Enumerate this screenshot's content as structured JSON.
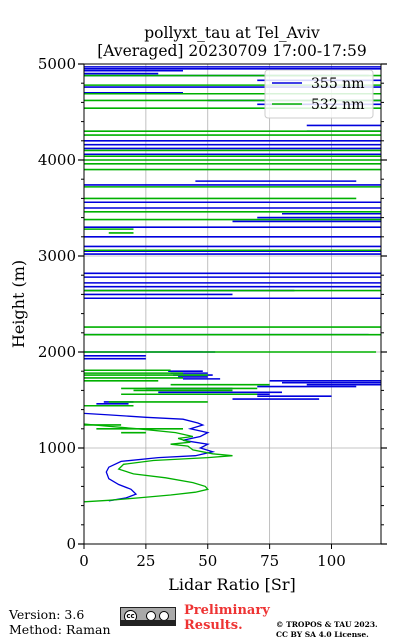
{
  "title_line1": "pollyxt_tau at Tel_Aviv",
  "title_line2": "[Averaged] 20230709 17:00-17:59",
  "footer": {
    "version": "Version: 3.6",
    "method": "Method: Raman",
    "preliminary_line1": "Preliminary",
    "preliminary_line2": "Results.",
    "copyright_line1": "© TROPOS & TAU 2023.",
    "copyright_line2": "CC BY SA 4.0 License.",
    "license_icon": "cc-by-sa-icon"
  },
  "chart_data": {
    "type": "line",
    "xlabel": "Lidar Ratio [Sr]",
    "ylabel": "Height (m)",
    "xlim": [
      0,
      120
    ],
    "ylim": [
      0,
      5000
    ],
    "xticks": [
      0,
      25,
      50,
      75,
      100
    ],
    "yticks": [
      0,
      1000,
      2000,
      3000,
      4000,
      5000
    ],
    "grid": true,
    "legend_position": "top-right",
    "series": [
      {
        "name": "355 nm",
        "color": "#0000dd",
        "profile": [
          [
            10,
            450
          ],
          [
            17,
            480
          ],
          [
            21,
            520
          ],
          [
            19,
            570
          ],
          [
            14,
            620
          ],
          [
            10,
            680
          ],
          [
            9,
            750
          ],
          [
            10,
            800
          ],
          [
            15,
            860
          ],
          [
            30,
            900
          ],
          [
            45,
            920
          ],
          [
            52,
            960
          ],
          [
            47,
            1000
          ],
          [
            50,
            1040
          ],
          [
            40,
            1080
          ],
          [
            47,
            1120
          ],
          [
            50,
            1160
          ],
          [
            43,
            1200
          ],
          [
            48,
            1240
          ],
          [
            46,
            1260
          ],
          [
            40,
            1300
          ],
          [
            25,
            1320
          ],
          [
            10,
            1345
          ],
          [
            0,
            1360
          ]
        ],
        "layers": [
          [
            1460,
            5,
            18
          ],
          [
            1480,
            8,
            20
          ],
          [
            1510,
            60,
            95
          ],
          [
            1540,
            70,
            100
          ],
          [
            1560,
            45,
            75
          ],
          [
            1580,
            30,
            80
          ],
          [
            1620,
            25,
            60
          ],
          [
            1640,
            70,
            110
          ],
          [
            1660,
            90,
            120
          ],
          [
            1680,
            80,
            120
          ],
          [
            1700,
            75,
            120
          ],
          [
            1720,
            40,
            55
          ],
          [
            1740,
            38,
            50
          ],
          [
            1760,
            36,
            52
          ],
          [
            1780,
            35,
            50
          ],
          [
            1800,
            34,
            48
          ],
          [
            1930,
            0,
            25
          ],
          [
            1960,
            0,
            25
          ],
          [
            2000,
            0,
            53
          ],
          [
            2180,
            0,
            115
          ],
          [
            2560,
            0,
            120
          ],
          [
            2600,
            0,
            60
          ],
          [
            2640,
            0,
            85
          ],
          [
            2680,
            0,
            120
          ],
          [
            2720,
            0,
            120
          ],
          [
            2780,
            0,
            120
          ],
          [
            2820,
            0,
            120
          ],
          [
            3020,
            0,
            120
          ],
          [
            3050,
            0,
            120
          ],
          [
            3100,
            0,
            120
          ],
          [
            3200,
            0,
            120
          ],
          [
            3300,
            0,
            120
          ],
          [
            3360,
            60,
            120
          ],
          [
            3400,
            70,
            120
          ],
          [
            3440,
            80,
            120
          ],
          [
            3500,
            0,
            120
          ],
          [
            3560,
            0,
            120
          ],
          [
            3740,
            0,
            120
          ],
          [
            3780,
            45,
            110
          ],
          [
            4060,
            0,
            120
          ],
          [
            4120,
            0,
            120
          ],
          [
            4160,
            0,
            120
          ],
          [
            4200,
            0,
            120
          ],
          [
            4300,
            90,
            120
          ],
          [
            4360,
            90,
            120
          ],
          [
            4580,
            70,
            120
          ],
          [
            4620,
            50,
            120
          ],
          [
            4700,
            0,
            40
          ],
          [
            4760,
            0,
            120
          ],
          [
            4830,
            70,
            120
          ],
          [
            4880,
            0,
            115
          ],
          [
            4900,
            0,
            30
          ],
          [
            4930,
            0,
            40
          ],
          [
            4950,
            0,
            120
          ],
          [
            4970,
            0,
            120
          ]
        ]
      },
      {
        "name": "532 nm",
        "color": "#00b000",
        "profile": [
          [
            0,
            440
          ],
          [
            10,
            455
          ],
          [
            22,
            480
          ],
          [
            35,
            510
          ],
          [
            45,
            540
          ],
          [
            50,
            570
          ],
          [
            49,
            600
          ],
          [
            44,
            640
          ],
          [
            33,
            690
          ],
          [
            20,
            730
          ],
          [
            14,
            780
          ],
          [
            16,
            830
          ],
          [
            28,
            870
          ],
          [
            50,
            900
          ],
          [
            60,
            920
          ],
          [
            52,
            940
          ],
          [
            44,
            980
          ],
          [
            42,
            1020
          ],
          [
            35,
            1040
          ],
          [
            43,
            1060
          ],
          [
            38,
            1100
          ],
          [
            44,
            1120
          ],
          [
            37,
            1160
          ],
          [
            22,
            1200
          ],
          [
            8,
            1230
          ],
          [
            0,
            1250
          ]
        ],
        "layers": [
          [
            1160,
            15,
            25
          ],
          [
            1200,
            5,
            40
          ],
          [
            1240,
            0,
            15
          ],
          [
            1440,
            0,
            20
          ],
          [
            1480,
            10,
            50
          ],
          [
            1560,
            15,
            70
          ],
          [
            1600,
            20,
            60
          ],
          [
            1620,
            15,
            70
          ],
          [
            1660,
            35,
            75
          ],
          [
            1700,
            0,
            30
          ],
          [
            1730,
            0,
            40
          ],
          [
            1760,
            0,
            50
          ],
          [
            1780,
            0,
            40
          ],
          [
            1810,
            0,
            35
          ],
          [
            2000,
            0,
            118
          ],
          [
            2180,
            0,
            120
          ],
          [
            2260,
            0,
            120
          ],
          [
            2640,
            0,
            120
          ],
          [
            3060,
            0,
            120
          ],
          [
            3240,
            10,
            20
          ],
          [
            3280,
            0,
            20
          ],
          [
            3380,
            0,
            120
          ],
          [
            3460,
            0,
            120
          ],
          [
            3600,
            0,
            110
          ],
          [
            3720,
            0,
            120
          ],
          [
            3900,
            0,
            120
          ],
          [
            3960,
            0,
            120
          ],
          [
            4000,
            0,
            120
          ],
          [
            4040,
            0,
            120
          ],
          [
            4100,
            0,
            120
          ],
          [
            4260,
            0,
            120
          ],
          [
            4300,
            0,
            120
          ],
          [
            4540,
            0,
            120
          ],
          [
            4620,
            0,
            120
          ],
          [
            4690,
            0,
            120
          ],
          [
            4780,
            0,
            120
          ],
          [
            4880,
            0,
            120
          ]
        ]
      }
    ]
  }
}
